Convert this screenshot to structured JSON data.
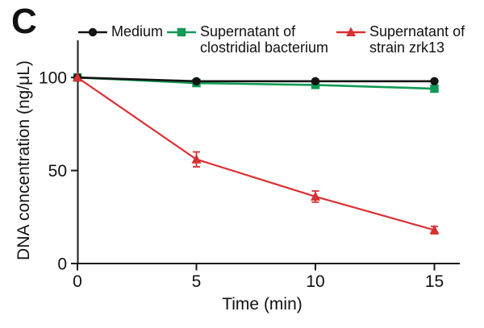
{
  "panel_label": "C",
  "axis_color": "#1a1a1a",
  "chart_data": {
    "type": "line",
    "x": [
      0,
      5,
      10,
      15
    ],
    "xlabel": "Time (min)",
    "ylabel": "DNA concentration (ng/μL)",
    "xticks": [
      0,
      5,
      10,
      15
    ],
    "yticks": [
      0,
      50,
      100
    ],
    "xlim": [
      0,
      16
    ],
    "ylim": [
      0,
      120
    ],
    "grid": false,
    "legend_position": "top",
    "series": [
      {
        "name": "Medium",
        "marker": "circle",
        "color": "#141414",
        "values": [
          100,
          98,
          98,
          98
        ],
        "errors": [
          0,
          0,
          0,
          0
        ]
      },
      {
        "name": "Supernatant of clostridial bacterium",
        "marker": "square",
        "color": "#109a54",
        "values": [
          100,
          97,
          96,
          94
        ],
        "errors": [
          0,
          0,
          0,
          0
        ]
      },
      {
        "name": "Supernatant of strain zrk13",
        "marker": "triangle",
        "color": "#d93032",
        "values": [
          100,
          56,
          36,
          18
        ],
        "errors": [
          0,
          4,
          3,
          2
        ]
      }
    ]
  },
  "legend": {
    "items": [
      {
        "series": 0,
        "label_lines": [
          "Medium"
        ]
      },
      {
        "series": 1,
        "label_lines": [
          "Supernatant of",
          "clostridial bacterium"
        ]
      },
      {
        "series": 2,
        "label_lines": [
          "Supernatant of",
          "strain zrk13"
        ]
      }
    ]
  }
}
